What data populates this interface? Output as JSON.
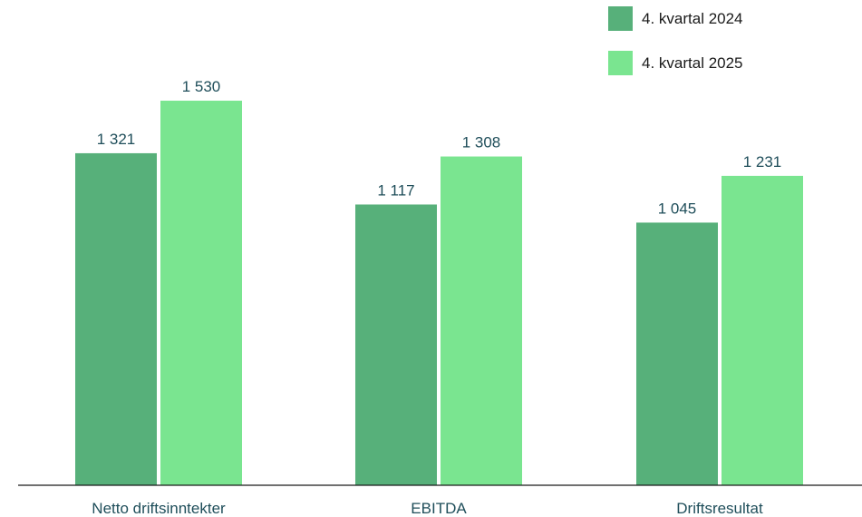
{
  "chart_data": {
    "type": "bar",
    "categories": [
      "Netto driftsinntekter",
      "EBITDA",
      "Driftsresultat"
    ],
    "series": [
      {
        "name": "4. kvartal 2024",
        "values": [
          1321,
          1117,
          1045
        ],
        "labels": [
          "1 321",
          "1 117",
          "1 045"
        ],
        "color": "#57b07a"
      },
      {
        "name": "4. kvartal 2025",
        "values": [
          1530,
          1308,
          1231
        ],
        "labels": [
          "1 530",
          "1 308",
          "1 231"
        ],
        "color": "#7ae590"
      }
    ],
    "ylim": [
      0,
      1660
    ],
    "grid": false,
    "legend_position": "top-right",
    "title": "",
    "xlabel": "",
    "ylabel": ""
  },
  "colors": {
    "axis": "#1a1a1a",
    "label_text": "#1f4e5a"
  }
}
